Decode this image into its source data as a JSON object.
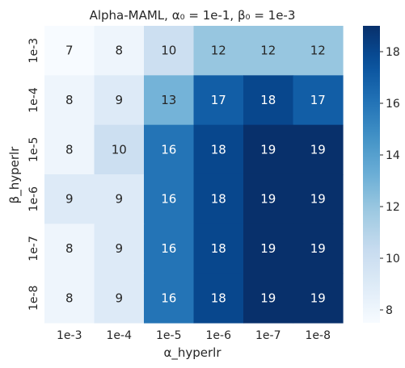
{
  "chart_data": {
    "type": "heatmap",
    "title": "Alpha-MAML, α₀ = 1e-1, β₀ = 1e-3",
    "xlabel": "α_hyperlr",
    "ylabel": "β_hyperlr",
    "x_categories": [
      "1e-3",
      "1e-4",
      "1e-5",
      "1e-6",
      "1e-7",
      "1e-8"
    ],
    "y_categories": [
      "1e-3",
      "1e-4",
      "1e-5",
      "1e-6",
      "1e-7",
      "1e-8"
    ],
    "values": [
      [
        7,
        8,
        10,
        12,
        12,
        12
      ],
      [
        8,
        9,
        13,
        17,
        18,
        17
      ],
      [
        8,
        10,
        16,
        18,
        19,
        19
      ],
      [
        9,
        9,
        16,
        18,
        19,
        19
      ],
      [
        8,
        9,
        16,
        18,
        19,
        19
      ],
      [
        8,
        9,
        16,
        18,
        19,
        19
      ]
    ],
    "colormap": "Blues",
    "colorbar": {
      "range": [
        7.5,
        19.0
      ],
      "ticks": [
        8,
        10,
        12,
        14,
        16,
        18
      ]
    },
    "annotations": true
  }
}
